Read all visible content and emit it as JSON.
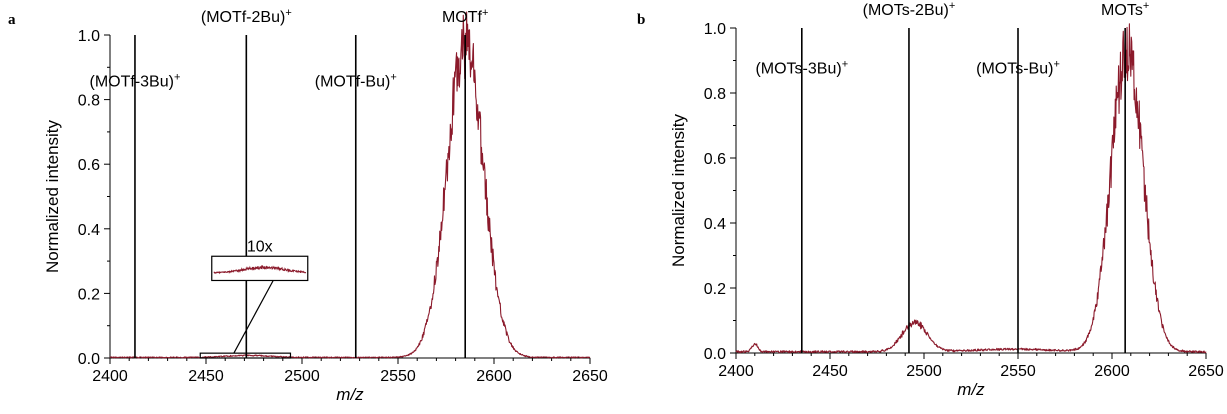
{
  "chart_data": [
    {
      "panel_label": "a",
      "type": "line",
      "xlabel": "m/z",
      "ylabel": "Normalized intensity",
      "xlim": [
        2400,
        2650
      ],
      "ylim": [
        0,
        1.0
      ],
      "xticks": [
        2400,
        2450,
        2500,
        2550,
        2600,
        2650
      ],
      "yticks": [
        "0.0",
        "0.2",
        "0.4",
        "0.6",
        "0.8",
        "1.0"
      ],
      "grid": false,
      "line_color": "#8b1a2b",
      "series_color": "#8b1a2b",
      "peak": {
        "center": 2585,
        "sigma": 9.5,
        "amplitude": 0.97
      },
      "minor_hump": {
        "center": 2472,
        "sigma": 11,
        "amplitude": 0.006
      },
      "markers": [
        {
          "x": 2413,
          "top": 1.0,
          "label": "(MOTf-3Bu)",
          "sup": "+",
          "label_y": 0.84,
          "anchor": "middle"
        },
        {
          "x": 2471,
          "top": 1.0,
          "label": "(MOTf-2Bu)",
          "sup": "+",
          "label_y": 1.04,
          "anchor": "middle"
        },
        {
          "x": 2528,
          "top": 1.0,
          "label": "(MOTf-Bu)",
          "sup": "+",
          "label_y": 0.84,
          "anchor": "middle"
        },
        {
          "x": 2585,
          "top": 1.0,
          "label": "MOTf",
          "sup": "+",
          "label_y": 1.04,
          "anchor": "middle"
        }
      ],
      "inset": {
        "label": "10x",
        "source_box": {
          "x0": 2447,
          "x1": 2494,
          "y0": 0.0,
          "y1": 0.015
        },
        "inset_box": {
          "x0": 2453,
          "x1": 2503,
          "y0": 0.24,
          "y1": 0.315
        },
        "connector_to": {
          "x": 2485,
          "y": 0.24
        }
      }
    },
    {
      "panel_label": "b",
      "type": "line",
      "xlabel": "m/z",
      "ylabel": "Normalized intensity",
      "xlim": [
        2400,
        2650
      ],
      "ylim": [
        0,
        1.0
      ],
      "xticks": [
        2400,
        2450,
        2500,
        2550,
        2600,
        2650
      ],
      "yticks": [
        "0.0",
        "0.2",
        "0.4",
        "0.6",
        "0.8",
        "1.0"
      ],
      "grid": false,
      "line_color": "#8b1a2b",
      "series_color": "#8b1a2b",
      "peaks": [
        {
          "center": 2608,
          "sigma": 8.5,
          "amplitude": 0.93
        },
        {
          "center": 2495,
          "sigma": 6.5,
          "amplitude": 0.09
        },
        {
          "center": 2410,
          "sigma": 1.5,
          "amplitude": 0.025
        },
        {
          "center": 2548,
          "sigma": 20,
          "amplitude": 0.008
        }
      ],
      "markers": [
        {
          "x": 2435,
          "top": 1.0,
          "label": "(MOTs-3Bu)",
          "sup": "+",
          "label_y": 0.86,
          "anchor": "middle"
        },
        {
          "x": 2492,
          "top": 1.0,
          "label": "(MOTs-2Bu)",
          "sup": "+",
          "label_y": 1.04,
          "anchor": "middle"
        },
        {
          "x": 2550,
          "top": 1.0,
          "label": "(MOTs-Bu)",
          "sup": "+",
          "label_y": 0.86,
          "anchor": "middle"
        },
        {
          "x": 2607,
          "top": 1.0,
          "label": "MOTs",
          "sup": "+",
          "label_y": 1.04,
          "anchor": "middle"
        }
      ]
    }
  ]
}
